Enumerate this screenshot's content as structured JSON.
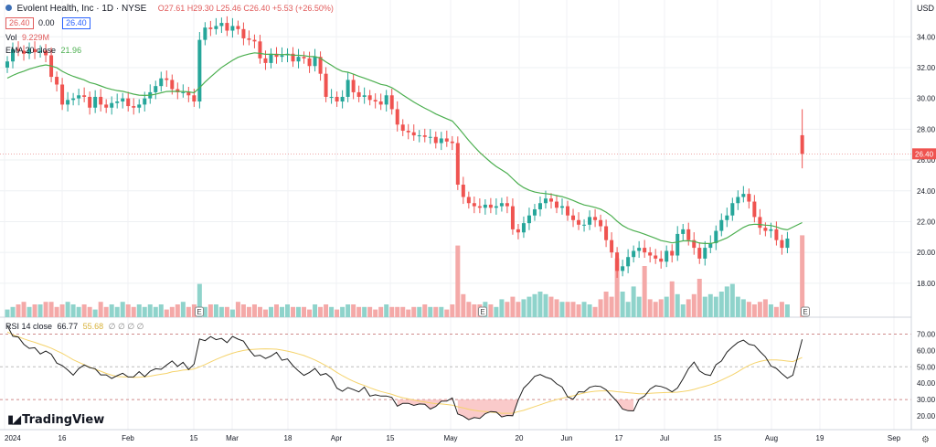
{
  "header": {
    "title": "Evolent Health, Inc · 1D · NYSE",
    "ohlc": "O27.61 H29.30 L25.46 C26.40 +5.53 (+26.50%)",
    "sell_price": "26.40",
    "spread": "0.00",
    "buy_price": "26.40",
    "volume_label": "Vol",
    "volume_value": "9.229M",
    "ema_label": "EMA 20 close",
    "ema_value": "21.96",
    "rsi_label": "RSI 14 close",
    "rsi_value": "66.77",
    "rsi_ma_value": "55.68",
    "rsi_extra": "∅ ∅ ∅ ∅"
  },
  "currency": "USD",
  "logo_text": "TradingView",
  "last_price_label": "26.40",
  "colors": {
    "up": "#26a69a",
    "down": "#ef5350",
    "ema": "#4caf50",
    "rsi": "#1e1e1e",
    "rsi_ma": "#f5d36b",
    "oversold_fill": "#f8b4b4"
  },
  "chart_data": [
    {
      "type": "candlestick",
      "title": "Evolent Health, Inc · 1D · NYSE",
      "ylim": [
        16.6,
        36.3
      ],
      "y_ticks": [
        "34.00",
        "32.00",
        "30.00",
        "28.00",
        "26.00",
        "24.00",
        "22.00",
        "20.00",
        "18.00"
      ],
      "x_ticks": [
        "2024",
        "16",
        "Feb",
        "15",
        "Mar",
        "18",
        "Apr",
        "15",
        "May",
        "20",
        "Jun",
        "17",
        "Jul",
        "15",
        "Aug",
        "19",
        "Sep"
      ],
      "close": [
        32.4,
        33.2,
        33.1,
        32.9,
        33.2,
        33.0,
        33.1,
        32.8,
        31.4,
        30.9,
        29.6,
        29.9,
        30.0,
        30.2,
        30.1,
        29.4,
        30.1,
        29.6,
        29.4,
        29.7,
        29.8,
        30.0,
        29.5,
        29.4,
        29.6,
        30.0,
        30.4,
        30.8,
        31.3,
        31.2,
        30.6,
        30.4,
        30.4,
        30.2,
        29.8,
        33.8,
        34.6,
        34.5,
        34.7,
        34.9,
        34.4,
        34.7,
        34.5,
        33.9,
        33.8,
        33.7,
        32.6,
        32.3,
        32.9,
        32.7,
        32.8,
        32.9,
        32.4,
        32.7,
        32.6,
        32.1,
        32.7,
        31.6,
        30.1,
        30.1,
        29.8,
        30.1,
        31.2,
        30.4,
        30.1,
        30.2,
        29.9,
        29.8,
        29.6,
        30.2,
        29.3,
        28.3,
        27.9,
        27.8,
        27.6,
        27.6,
        27.5,
        27.5,
        27.1,
        27.4,
        27.2,
        27.1,
        24.4,
        23.6,
        23.2,
        23.0,
        22.9,
        23.1,
        22.9,
        23.0,
        23.2,
        23.0,
        21.5,
        21.3,
        21.9,
        22.4,
        22.8,
        23.2,
        23.5,
        23.3,
        22.9,
        23.0,
        22.4,
        22.1,
        21.8,
        21.8,
        22.3,
        22.1,
        21.7,
        20.8,
        20.0,
        18.8,
        19.1,
        19.7,
        20.1,
        20.3,
        20.0,
        19.8,
        19.6,
        19.4,
        20.1,
        19.8,
        21.2,
        21.5,
        20.8,
        20.3,
        19.6,
        20.3,
        20.6,
        21.4,
        22.1,
        22.4,
        23.2,
        23.6,
        23.8,
        23.3,
        22.3,
        21.6,
        21.4,
        21.5,
        20.8,
        20.3,
        20.9
      ],
      "last": {
        "open": 27.61,
        "high": 29.3,
        "low": 25.46,
        "close": 26.4
      }
    },
    {
      "type": "bar",
      "name": "Volume",
      "values": [
        0.3,
        0.4,
        0.5,
        0.6,
        0.4,
        0.5,
        0.5,
        0.6,
        0.6,
        0.4,
        0.5,
        0.6,
        0.5,
        0.4,
        0.5,
        0.4,
        0.3,
        0.6,
        0.4,
        0.5,
        0.4,
        0.6,
        0.5,
        0.4,
        0.5,
        0.4,
        0.5,
        0.4,
        0.5,
        0.3,
        0.4,
        0.5,
        0.6,
        0.4,
        0.5,
        1.3,
        0.4,
        0.5,
        0.5,
        0.4,
        0.4,
        0.3,
        0.6,
        0.5,
        0.4,
        0.5,
        0.4,
        0.3,
        0.4,
        0.5,
        0.4,
        0.5,
        0.4,
        0.4,
        0.4,
        0.3,
        0.5,
        0.4,
        0.5,
        0.4,
        0.3,
        0.4,
        0.5,
        0.5,
        0.4,
        0.4,
        0.4,
        0.3,
        0.4,
        0.5,
        0.4,
        0.4,
        0.4,
        0.3,
        0.4,
        0.4,
        0.5,
        0.4,
        0.4,
        0.4,
        0.3,
        0.5,
        2.8,
        0.9,
        0.6,
        0.5,
        0.5,
        0.6,
        0.5,
        0.4,
        0.7,
        0.6,
        0.8,
        0.6,
        0.7,
        0.8,
        0.9,
        1.0,
        0.9,
        0.8,
        0.7,
        0.6,
        0.6,
        0.6,
        0.5,
        0.6,
        0.5,
        0.4,
        0.7,
        1.0,
        0.8,
        2.3,
        1.0,
        0.6,
        1.2,
        0.8,
        2.0,
        0.7,
        0.6,
        0.7,
        0.8,
        1.4,
        0.9,
        0.5,
        0.7,
        0.9,
        1.5,
        0.8,
        0.9,
        0.8,
        1.0,
        1.2,
        1.3,
        0.8,
        0.7,
        0.6,
        0.5,
        0.6,
        0.7,
        0.5,
        0.4,
        0.6,
        0.5,
        3.2
      ]
    },
    {
      "type": "line",
      "name": "RSI 14 close",
      "ylim": [
        14.3,
        76.2
      ],
      "y_ticks": [
        "70.00",
        "60.00",
        "50.00",
        "40.00",
        "30.00",
        "20.00"
      ],
      "series": [
        {
          "name": "RSI",
          "values": [
            75.2,
            68.7,
            68.2,
            63.8,
            61.3,
            61.7,
            57.9,
            59.6,
            57.7,
            52.3,
            50.8,
            48.1,
            44.9,
            48.9,
            51.2,
            49.5,
            48.8,
            45.1,
            45.1,
            42.9,
            44.6,
            46.1,
            43.8,
            43.9,
            47.1,
            44.0,
            47.4,
            48.8,
            48.5,
            51.1,
            53.6,
            50.3,
            52.8,
            48.4,
            51.7,
            67.0,
            66.0,
            68.5,
            66.6,
            67.4,
            64.8,
            68.6,
            66.9,
            65.7,
            60.6,
            56.6,
            57.1,
            55.1,
            56.6,
            58.8,
            54.0,
            54.8,
            50.7,
            47.5,
            44.8,
            46.6,
            49.0,
            44.9,
            45.9,
            43.2,
            37.0,
            35.1,
            37.3,
            36.1,
            34.7,
            37.6,
            32.1,
            32.9,
            32.1,
            32.2,
            31.3,
            26.0,
            27.7,
            27.7,
            26.4,
            27.3,
            27.1,
            24.2,
            25.8,
            29.0,
            29.1,
            31.0,
            21.2,
            19.9,
            17.7,
            19.0,
            18.5,
            21.4,
            22.7,
            22.4,
            19.4,
            20.3,
            20.1,
            29.7,
            37.0,
            40.3,
            44.2,
            45.3,
            43.7,
            42.6,
            39.6,
            37.6,
            31.7,
            30.2,
            34.8,
            34.6,
            37.5,
            38.3,
            38.0,
            36.0,
            32.3,
            28.7,
            24.2,
            23.2,
            23.1,
            30.1,
            32.2,
            36.4,
            38.5,
            38.0,
            36.8,
            34.7,
            37.1,
            42.6,
            48.8,
            52.9,
            47.5,
            45.4,
            44.7,
            51.3,
            53.6,
            59.0,
            62.2,
            64.9,
            66.3,
            63.8,
            63.1,
            59.4,
            56.1,
            50.5,
            49.0,
            45.8,
            43.0,
            44.9,
            66.8
          ]
        },
        {
          "name": "MA",
          "values": [
            71.3,
            69.6,
            68.4,
            67.1,
            66.0,
            65.0,
            63.8,
            62.7,
            61.4,
            59.8,
            58.2,
            56.3,
            54.3,
            52.8,
            51.3,
            49.8,
            48.5,
            47.3,
            46.0,
            44.9,
            44.1,
            43.9,
            43.8,
            43.5,
            43.7,
            43.9,
            44.3,
            44.9,
            45.5,
            46.0,
            46.9,
            47.4,
            48.0,
            48.2,
            48.7,
            50.0,
            51.4,
            53.0,
            54.5,
            55.9,
            57.2,
            58.3,
            59.3,
            60.0,
            60.5,
            60.7,
            60.9,
            61.0,
            60.9,
            60.8,
            60.2,
            59.6,
            58.8,
            57.9,
            56.9,
            55.6,
            54.2,
            52.5,
            50.7,
            48.7,
            46.6,
            44.6,
            42.8,
            41.2,
            39.8,
            38.6,
            37.2,
            36.0,
            34.9,
            34.1,
            33.2,
            32.0,
            31.1,
            30.4,
            29.7,
            29.0,
            28.5,
            28.0,
            27.5,
            27.3,
            27.0,
            26.6,
            25.6,
            24.9,
            24.1,
            23.4,
            22.9,
            22.6,
            22.3,
            22.0,
            21.6,
            21.6,
            21.7,
            22.6,
            23.4,
            24.5,
            25.7,
            26.8,
            28.0,
            29.0,
            30.0,
            30.8,
            31.6,
            32.3,
            33.2,
            34.0,
            34.7,
            35.1,
            35.3,
            35.3,
            35.2,
            34.8,
            34.5,
            34.2,
            33.9,
            33.6,
            33.5,
            33.8,
            34.0,
            34.2,
            34.3,
            34.4,
            34.5,
            34.9,
            35.4,
            36.2,
            37.2,
            38.1,
            39.1,
            40.4,
            41.9,
            43.5,
            45.1,
            47.0,
            49.1,
            50.9,
            52.3,
            53.3,
            54.0,
            54.2,
            54.2,
            53.9,
            53.5,
            53.2,
            55.7
          ]
        }
      ]
    }
  ]
}
